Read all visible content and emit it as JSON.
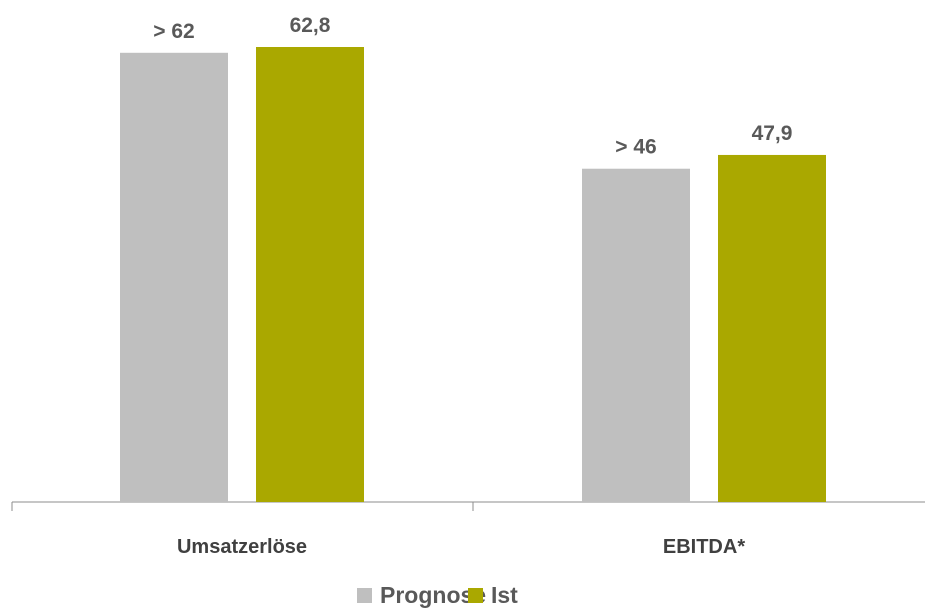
{
  "chart_data": {
    "type": "bar",
    "categories": [
      "Umsatzerlöse",
      "EBITDA*"
    ],
    "series": [
      {
        "name": "Prognose",
        "color": "#bfbfbf",
        "values": [
          62,
          46
        ],
        "labels": [
          "> 62",
          "> 46"
        ]
      },
      {
        "name": "Ist",
        "color": "#aaa800",
        "values": [
          62.8,
          47.9
        ],
        "labels": [
          "62,8",
          "47,9"
        ]
      }
    ],
    "ylim": [
      0,
      62.8
    ],
    "grid": false,
    "legend_position": "bottom"
  }
}
